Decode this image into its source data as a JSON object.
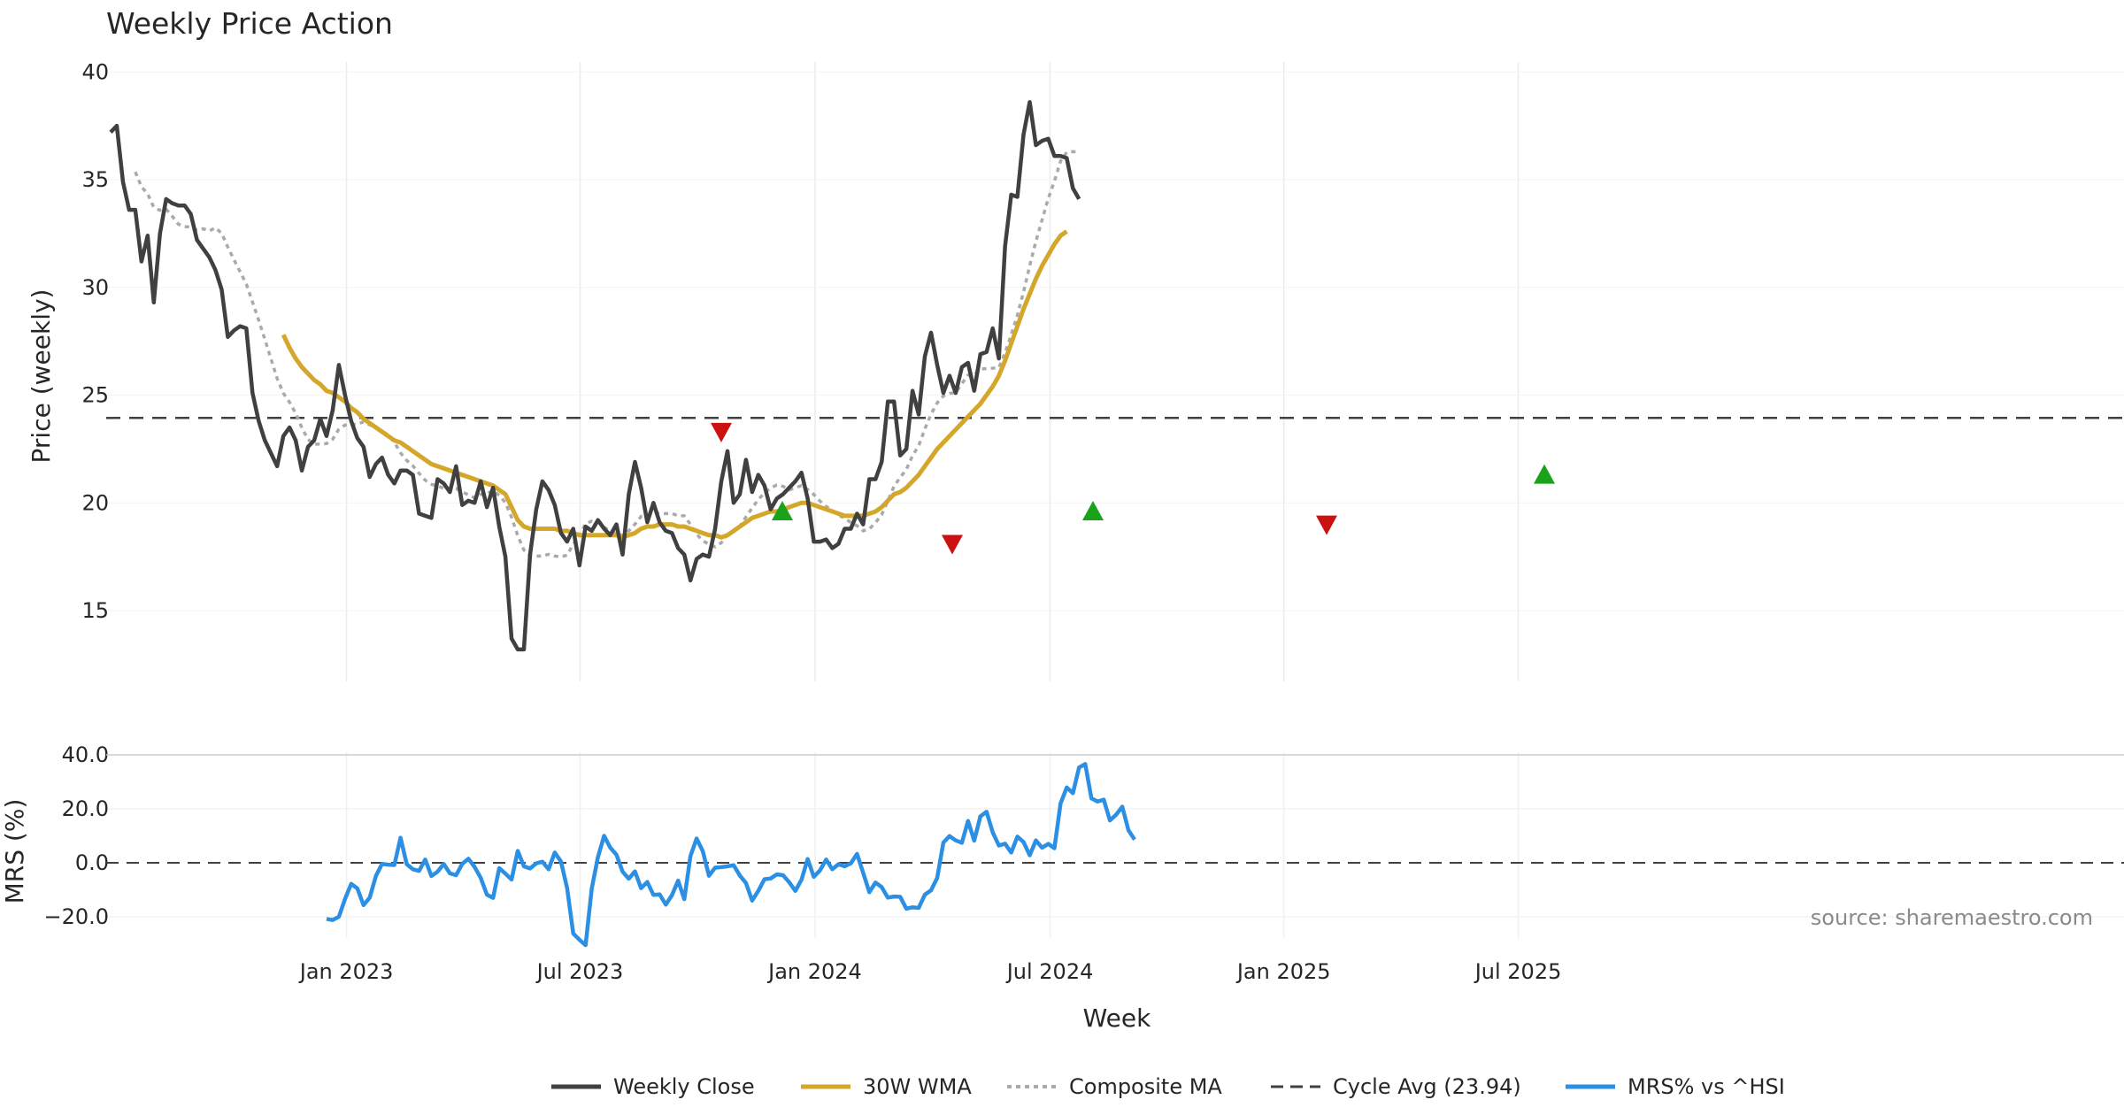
{
  "chart_data": {
    "type": "line",
    "title": "Weekly Price Action",
    "xlabel": "Week",
    "source": "source: sharemaestro.com",
    "x_ticks": [
      "Jan 2023",
      "Jul 2023",
      "Jan 2024",
      "Jul 2024",
      "Jan 2025",
      "Jul 2025"
    ],
    "colors": {
      "close": "#404040",
      "wma": "#d4a62a",
      "composite": "#aaaaaa",
      "cycle": "#404040",
      "mrs": "#2b8fe3",
      "buy": "#1aa31a",
      "sell": "#cc1111"
    },
    "price_panel": {
      "ylabel": "Price (weekly)",
      "ylim": [
        11.5,
        40
      ],
      "yticks": [
        "15",
        "20",
        "25",
        "30",
        "35",
        "40"
      ],
      "cycle_avg": 23.94,
      "close": [
        37.2,
        37.5,
        34.9,
        33.6,
        33.6,
        31.2,
        32.4,
        29.3,
        32.5,
        34.1,
        33.9,
        33.8,
        33.8,
        33.4,
        32.2,
        31.8,
        31.4,
        30.8,
        29.9,
        27.7,
        28.0,
        28.2,
        28.1,
        25.1,
        23.8,
        22.9,
        22.3,
        21.7,
        23.1,
        23.5,
        22.9,
        21.5,
        22.6,
        22.9,
        23.9,
        23.1,
        24.3,
        26.4,
        25.0,
        23.8,
        23.0,
        22.6,
        21.2,
        21.8,
        22.1,
        21.3,
        20.9,
        21.5,
        21.5,
        21.3,
        19.5,
        19.4,
        19.3,
        21.1,
        20.9,
        20.5,
        21.7,
        19.9,
        20.1,
        20.0,
        21.0,
        19.8,
        20.7,
        18.9,
        17.5,
        13.7,
        13.2,
        13.2,
        17.6,
        19.7,
        21.0,
        20.6,
        19.9,
        18.6,
        18.2,
        18.8,
        17.1,
        18.9,
        18.7,
        19.2,
        18.8,
        18.5,
        19.0,
        17.6,
        20.4,
        21.9,
        20.7,
        19.1,
        20.0,
        19.1,
        18.7,
        18.6,
        17.9,
        17.6,
        16.4,
        17.4,
        17.6,
        17.5,
        18.8,
        21.0,
        22.4,
        20.0,
        20.4,
        22.0,
        20.5,
        21.3,
        20.8,
        19.7,
        20.2,
        20.4,
        20.7,
        21.0,
        21.4,
        20.2,
        18.2,
        18.2,
        18.3,
        17.9,
        18.1,
        18.8,
        18.8,
        19.5,
        19.0,
        21.1,
        21.1,
        21.9,
        24.7,
        24.7,
        22.2,
        22.5,
        25.2,
        24.1,
        26.8,
        27.9,
        26.4,
        25.1,
        25.9,
        25.1,
        26.3,
        26.5,
        25.2,
        26.9,
        27.0,
        28.1,
        26.7,
        31.9,
        34.3,
        34.2,
        37.1,
        38.6,
        36.6,
        36.8,
        36.9,
        36.1,
        36.1,
        36.0,
        34.6,
        34.1
      ],
      "wma_start_index": 28,
      "wma": [
        27.8,
        27.2,
        26.7,
        26.3,
        26.0,
        25.7,
        25.5,
        25.2,
        25.1,
        24.9,
        24.7,
        24.4,
        24.2,
        23.9,
        23.7,
        23.5,
        23.3,
        23.1,
        22.9,
        22.8,
        22.6,
        22.4,
        22.2,
        22.0,
        21.8,
        21.7,
        21.6,
        21.5,
        21.4,
        21.3,
        21.2,
        21.1,
        21.0,
        20.9,
        20.8,
        20.6,
        20.4,
        19.8,
        19.2,
        18.9,
        18.8,
        18.8,
        18.8,
        18.8,
        18.8,
        18.7,
        18.7,
        18.6,
        18.5,
        18.5,
        18.5,
        18.5,
        18.5,
        18.5,
        18.5,
        18.4,
        18.5,
        18.6,
        18.8,
        18.9,
        18.9,
        19.0,
        19.0,
        19.0,
        18.9,
        18.9,
        18.8,
        18.7,
        18.6,
        18.5,
        18.5,
        18.4,
        18.5,
        18.7,
        18.9,
        19.1,
        19.3,
        19.4,
        19.5,
        19.6,
        19.6,
        19.7,
        19.8,
        19.9,
        20.0,
        20.0,
        19.9,
        19.8,
        19.7,
        19.6,
        19.5,
        19.4,
        19.4,
        19.4,
        19.4,
        19.5,
        19.6,
        19.8,
        20.1,
        20.4,
        20.5,
        20.7,
        21.0,
        21.3,
        21.7,
        22.1,
        22.5,
        22.8,
        23.1,
        23.4,
        23.7,
        24.0,
        24.3,
        24.6,
        25.0,
        25.4,
        25.9,
        26.6,
        27.4,
        28.2,
        29.0,
        29.7,
        30.4,
        31.0,
        31.5,
        32.0,
        32.4,
        32.6
      ]
    },
    "mrs_panel": {
      "ylabel": "MRS (%)",
      "ylim": [
        -31,
        42
      ],
      "yticks": [
        "40.0",
        "20.0",
        "0.0",
        "−20.0"
      ],
      "mrs_start_index": 35,
      "mrs": [
        -20.8,
        -21.2,
        -20.0,
        -13.4,
        -7.8,
        -9.5,
        -15.7,
        -12.9,
        -4.9,
        -0.4,
        -0.7,
        -0.8,
        9.3,
        -0.5,
        -2.4,
        -3.0,
        1.2,
        -4.9,
        -3.3,
        -0.4,
        -3.9,
        -4.6,
        -0.4,
        1.5,
        -1.5,
        -5.6,
        -11.8,
        -13.0,
        -2.0,
        -4.0,
        -6.2,
        4.4,
        -1.3,
        -2.1,
        -0.2,
        0.4,
        -2.4,
        3.8,
        0.5,
        -9.3,
        -26.2,
        -28.5,
        -30.5,
        -9.5,
        2.1,
        10.0,
        5.6,
        3.0,
        -3.3,
        -5.9,
        -3.2,
        -9.4,
        -7.1,
        -11.9,
        -11.7,
        -15.5,
        -12.0,
        -6.6,
        -13.5,
        2.5,
        9.0,
        4.3,
        -4.8,
        -1.8,
        -1.6,
        -1.3,
        -0.9,
        -4.7,
        -7.5,
        -14.0,
        -10.4,
        -6.1,
        -5.8,
        -4.3,
        -4.6,
        -7.2,
        -10.4,
        -6.3,
        1.4,
        -5.2,
        -2.8,
        1.2,
        -2.4,
        -0.5,
        -1.3,
        -0.2,
        3.3,
        -3.7,
        -10.9,
        -7.3,
        -9.0,
        -12.9,
        -12.5,
        -12.6,
        -17.0,
        -16.5,
        -16.7,
        -11.8,
        -10.2,
        -5.6,
        7.5,
        9.9,
        8.3,
        7.4,
        15.5,
        8.2,
        17.2,
        18.9,
        11.3,
        6.4,
        7.1,
        3.8,
        9.7,
        7.7,
        2.8,
        8.3,
        5.6,
        7.0,
        5.4,
        22.0,
        27.9,
        25.8,
        35.3,
        36.6,
        23.9,
        22.7,
        23.4,
        15.7,
        17.8,
        20.8,
        12.1,
        8.6
      ]
    },
    "signals": {
      "buy": [
        {
          "x": 125.3,
          "y": 19.6
        },
        {
          "x": 137.0,
          "y": 19.6
        },
        {
          "x": 154.0,
          "y": 21.3
        }
      ],
      "sell": [
        {
          "x": 123.0,
          "y": 23.3
        },
        {
          "x": 131.7,
          "y": 18.1
        },
        {
          "x": 145.8,
          "y": 19.0
        }
      ]
    },
    "legend": [
      {
        "label": "Weekly Close",
        "style": "close"
      },
      {
        "label": "30W WMA",
        "style": "wma"
      },
      {
        "label": "Composite MA",
        "style": "composite"
      },
      {
        "label": "Cycle Avg (23.94)",
        "style": "cycle"
      },
      {
        "label": "MRS% vs ^HSI",
        "style": "mrs"
      }
    ]
  }
}
